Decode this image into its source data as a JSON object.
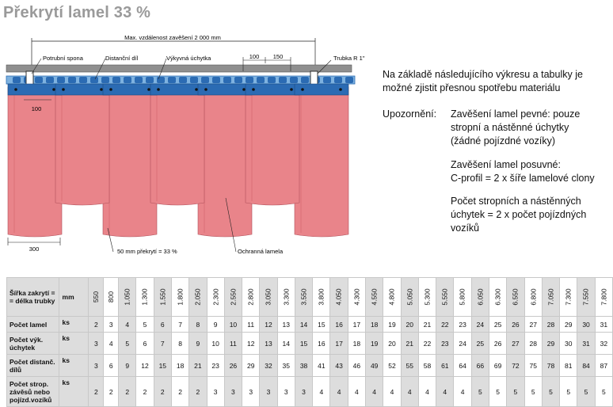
{
  "title": "Překrytí lamel 33 %",
  "diagram": {
    "max_distance": "Max. vzdálenost zavěšení 2 000 mm",
    "label_potrubni": "Potrubní spona",
    "label_distancni": "Distanční díl",
    "label_vykyvna": "Výkyvná úchytka",
    "dim_100_top": "100",
    "dim_150": "150",
    "label_trubka": "Trubka R 1\"",
    "dim_100_left": "100",
    "dim_300": "300",
    "label_overlap": "50 mm překrytí = 33 %",
    "label_ochranna": "Ochranná lamela",
    "colors": {
      "pipe": "#8f8f8f",
      "clip": "#2b6bb3",
      "curtain": "#e9848a",
      "curtain_dark": "#d76c73",
      "line": "#222222"
    }
  },
  "intro": "Na základě následujícího výkresu a tabulky je možné zjistit přesnou spotřebu materiálu",
  "warning": {
    "label": "Upozornění:",
    "block1": [
      "Zavěšení lamel pevné: pouze",
      "stropní a nástěnné úchytky",
      "(žádné pojízdné vozíky)"
    ],
    "block2": [
      "Zavěšení lamel posuvné:",
      "C-profil = 2 x šíře lamelové clony"
    ],
    "block3": [
      "Počet stropních a nástěnných",
      "úchytek = 2 x počet pojízdných",
      "vozíků"
    ]
  },
  "table": {
    "header_label": "Šířka zakrytí = = délka trubky",
    "header_unit": "mm",
    "columns": [
      "550",
      "800",
      "1.050",
      "1.300",
      "1.550",
      "1.800",
      "2.050",
      "2.300",
      "2.550",
      "2.800",
      "3.050",
      "3.300",
      "3.550",
      "3.800",
      "4.050",
      "4.300",
      "4.550",
      "4.800",
      "5.050",
      "5.300",
      "5.550",
      "5.800",
      "6.050",
      "6.300",
      "6.550",
      "6.800",
      "7.050",
      "7.300",
      "7.550",
      "7.800"
    ],
    "rows": [
      {
        "label": "Počet lamel",
        "unit": "ks",
        "values": [
          "2",
          "3",
          "4",
          "5",
          "6",
          "7",
          "8",
          "9",
          "10",
          "11",
          "12",
          "13",
          "14",
          "15",
          "16",
          "17",
          "18",
          "19",
          "20",
          "21",
          "22",
          "23",
          "24",
          "25",
          "26",
          "27",
          "28",
          "29",
          "30",
          "31"
        ]
      },
      {
        "label": "Počet výk. úchytek",
        "unit": "ks",
        "values": [
          "3",
          "4",
          "5",
          "6",
          "7",
          "8",
          "9",
          "10",
          "11",
          "12",
          "13",
          "14",
          "15",
          "16",
          "17",
          "18",
          "19",
          "20",
          "21",
          "22",
          "23",
          "24",
          "25",
          "26",
          "27",
          "28",
          "29",
          "30",
          "31",
          "32"
        ]
      },
      {
        "label": "Počet distanč. dílů",
        "unit": "ks",
        "values": [
          "3",
          "6",
          "9",
          "12",
          "15",
          "18",
          "21",
          "23",
          "26",
          "29",
          "32",
          "35",
          "38",
          "41",
          "43",
          "46",
          "49",
          "52",
          "55",
          "58",
          "61",
          "64",
          "66",
          "69",
          "72",
          "75",
          "78",
          "81",
          "84",
          "87"
        ]
      },
      {
        "label": "Počet strop. závěsů nebo pojízd.vozíků",
        "unit": "ks",
        "values": [
          "2",
          "2",
          "2",
          "2",
          "2",
          "2",
          "2",
          "3",
          "3",
          "3",
          "3",
          "3",
          "3",
          "4",
          "4",
          "4",
          "4",
          "4",
          "4",
          "4",
          "4",
          "4",
          "5",
          "5",
          "5",
          "5",
          "5",
          "5",
          "5",
          "5"
        ]
      }
    ]
  }
}
